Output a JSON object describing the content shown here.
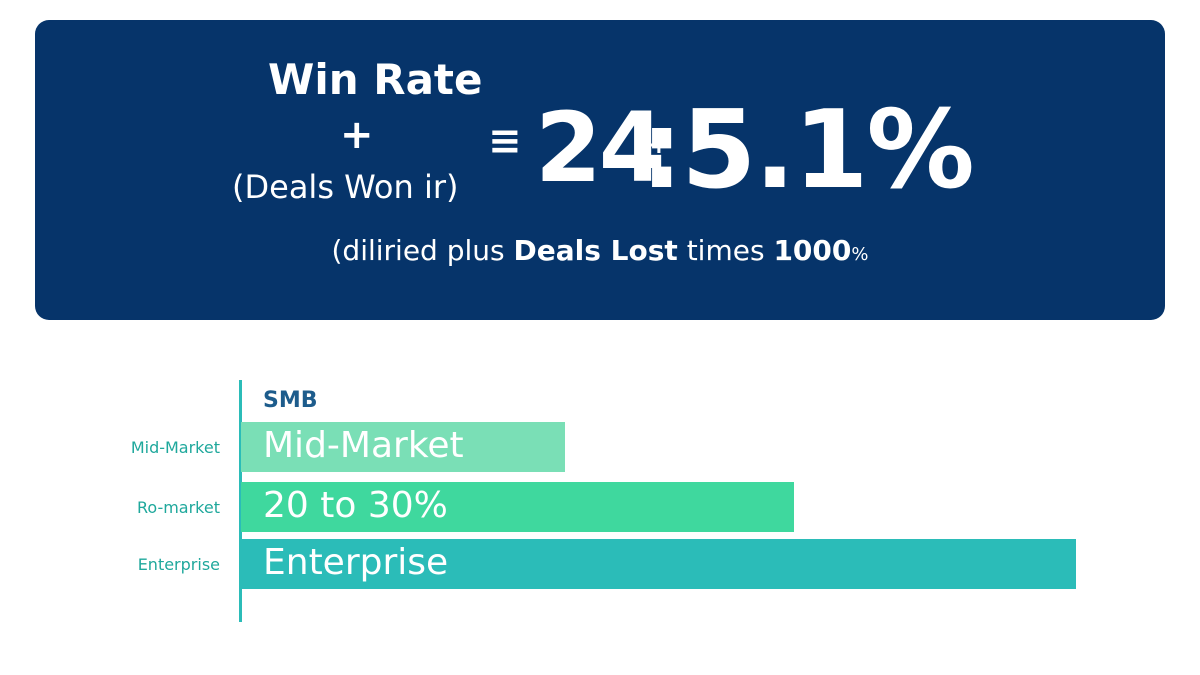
{
  "banner": {
    "title": "Win Rate",
    "plus": "+",
    "subtitle": "(Deals Won ir)",
    "equals": "≡",
    "big_number": {
      "first": "24",
      "mark": "+",
      "rest": ":5.1%"
    },
    "footnote": {
      "lead": "(diliried plus ",
      "bold_1": "Deals Lost",
      "mid": " times ",
      "bold_2": "1000",
      "unit": "%"
    }
  },
  "chart": {
    "header": "SMB",
    "rows": [
      {
        "side_label": "Mid-Market",
        "bar_label": "Mid-Market",
        "color": "#7adfb6"
      },
      {
        "side_label": "Ro-market",
        "bar_label": "20 to 30%",
        "color": "#3fd89e"
      },
      {
        "side_label": "Enterprise",
        "bar_label": "Enterprise",
        "color": "#2bbcb8"
      }
    ]
  }
}
